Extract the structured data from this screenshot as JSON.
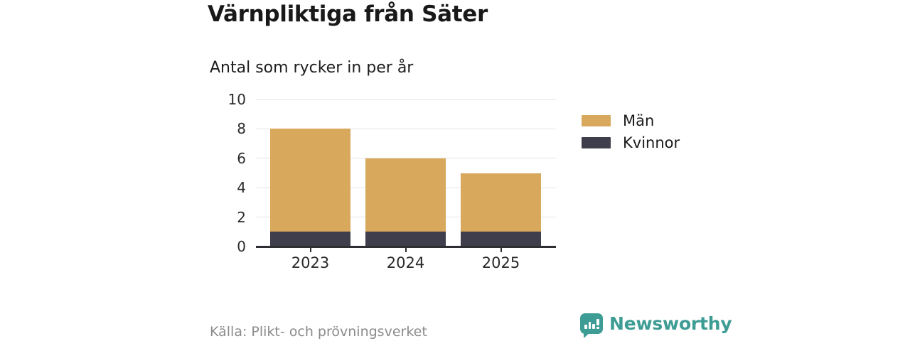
{
  "header": {
    "title": "Värnpliktiga från Säter",
    "subtitle": "Antal som rycker in per år"
  },
  "chart_data": {
    "type": "bar",
    "stacked": true,
    "title": "Värnpliktiga från Säter",
    "subtitle": "Antal som rycker in per år",
    "categories": [
      "2023",
      "2024",
      "2025"
    ],
    "series": [
      {
        "name": "Män",
        "color": "#d8a85d",
        "values": [
          7,
          5,
          4
        ]
      },
      {
        "name": "Kvinnor",
        "color": "#3f3e4c",
        "values": [
          1,
          1,
          1
        ]
      }
    ],
    "stack_bottom_to_top": [
      "Kvinnor",
      "Män"
    ],
    "totals": [
      8,
      6,
      5
    ],
    "ylim": [
      0,
      10
    ],
    "yticks": [
      0,
      2,
      4,
      6,
      8,
      10
    ],
    "grid": true,
    "legend_position": "right"
  },
  "footer": {
    "source": "Källa: Plikt- och prövningsverket",
    "brand": "Newsworthy",
    "brand_color": "#3d9c94"
  }
}
